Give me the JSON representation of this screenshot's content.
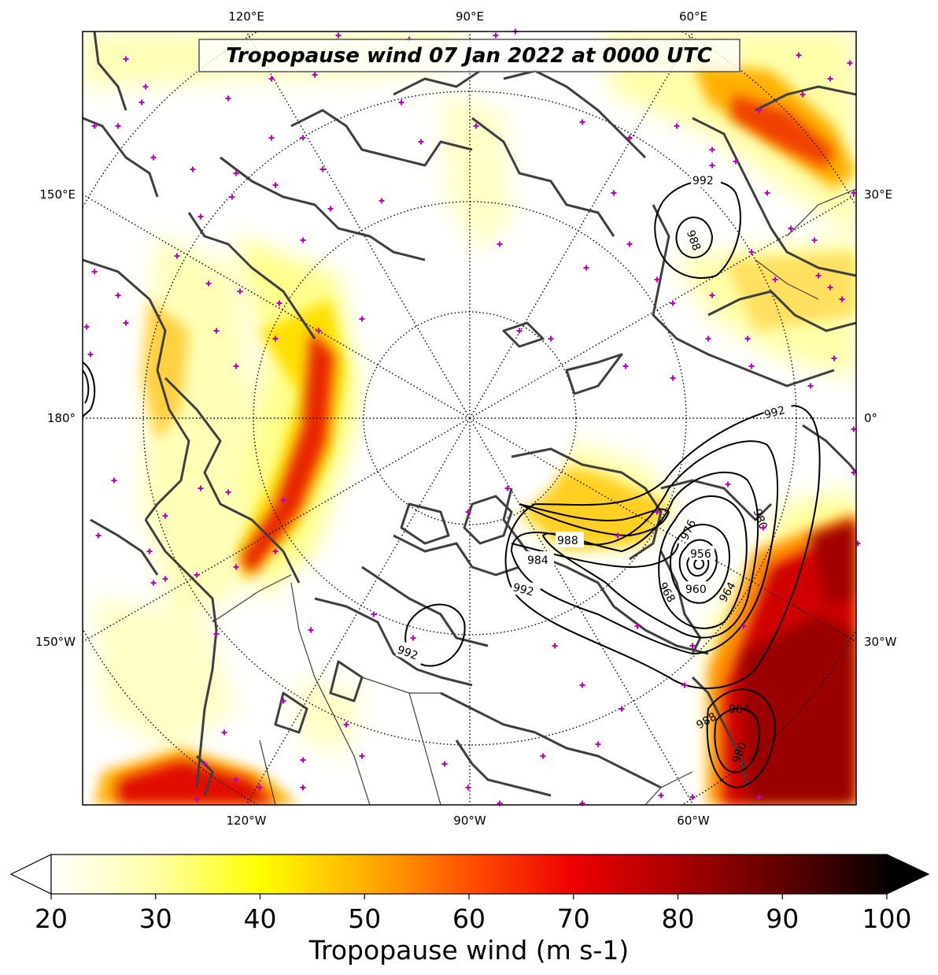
{
  "map": {
    "title": "Tropopause wind 07 Jan 2022 at 0000 UTC",
    "projection": "north-polar-stereographic",
    "colormap": "hot_r",
    "contour_field": "mean sea level pressure (hPa)",
    "top_lon_labels": [
      "120°E",
      "90°E",
      "60°E"
    ],
    "bottom_lon_labels": [
      "120°W",
      "90°W",
      "60°W"
    ],
    "left_lat_labels": [
      "150°E",
      "180°",
      "150°W"
    ],
    "right_lat_labels": [
      "30°E",
      "0°",
      "30°W"
    ],
    "contour_labels": [
      "992",
      "988",
      "992",
      "988",
      "984",
      "992",
      "976",
      "980",
      "956",
      "960",
      "964",
      "968",
      "992",
      "988",
      "984",
      "980"
    ],
    "colors": {
      "coast": "#3f3f3f",
      "contour": "#000000",
      "marker": "#c000c0",
      "jet_yellow": "#ffff40",
      "jet_orange": "#ff9000",
      "jet_red": "#e00000",
      "jet_dark": "#8b0000"
    }
  },
  "colorbar": {
    "label": "Tropopause wind (m s-1)",
    "min": 20,
    "max": 100,
    "ticks": [
      "20",
      "30",
      "40",
      "50",
      "60",
      "70",
      "80",
      "90",
      "100"
    ],
    "extend": "both"
  }
}
